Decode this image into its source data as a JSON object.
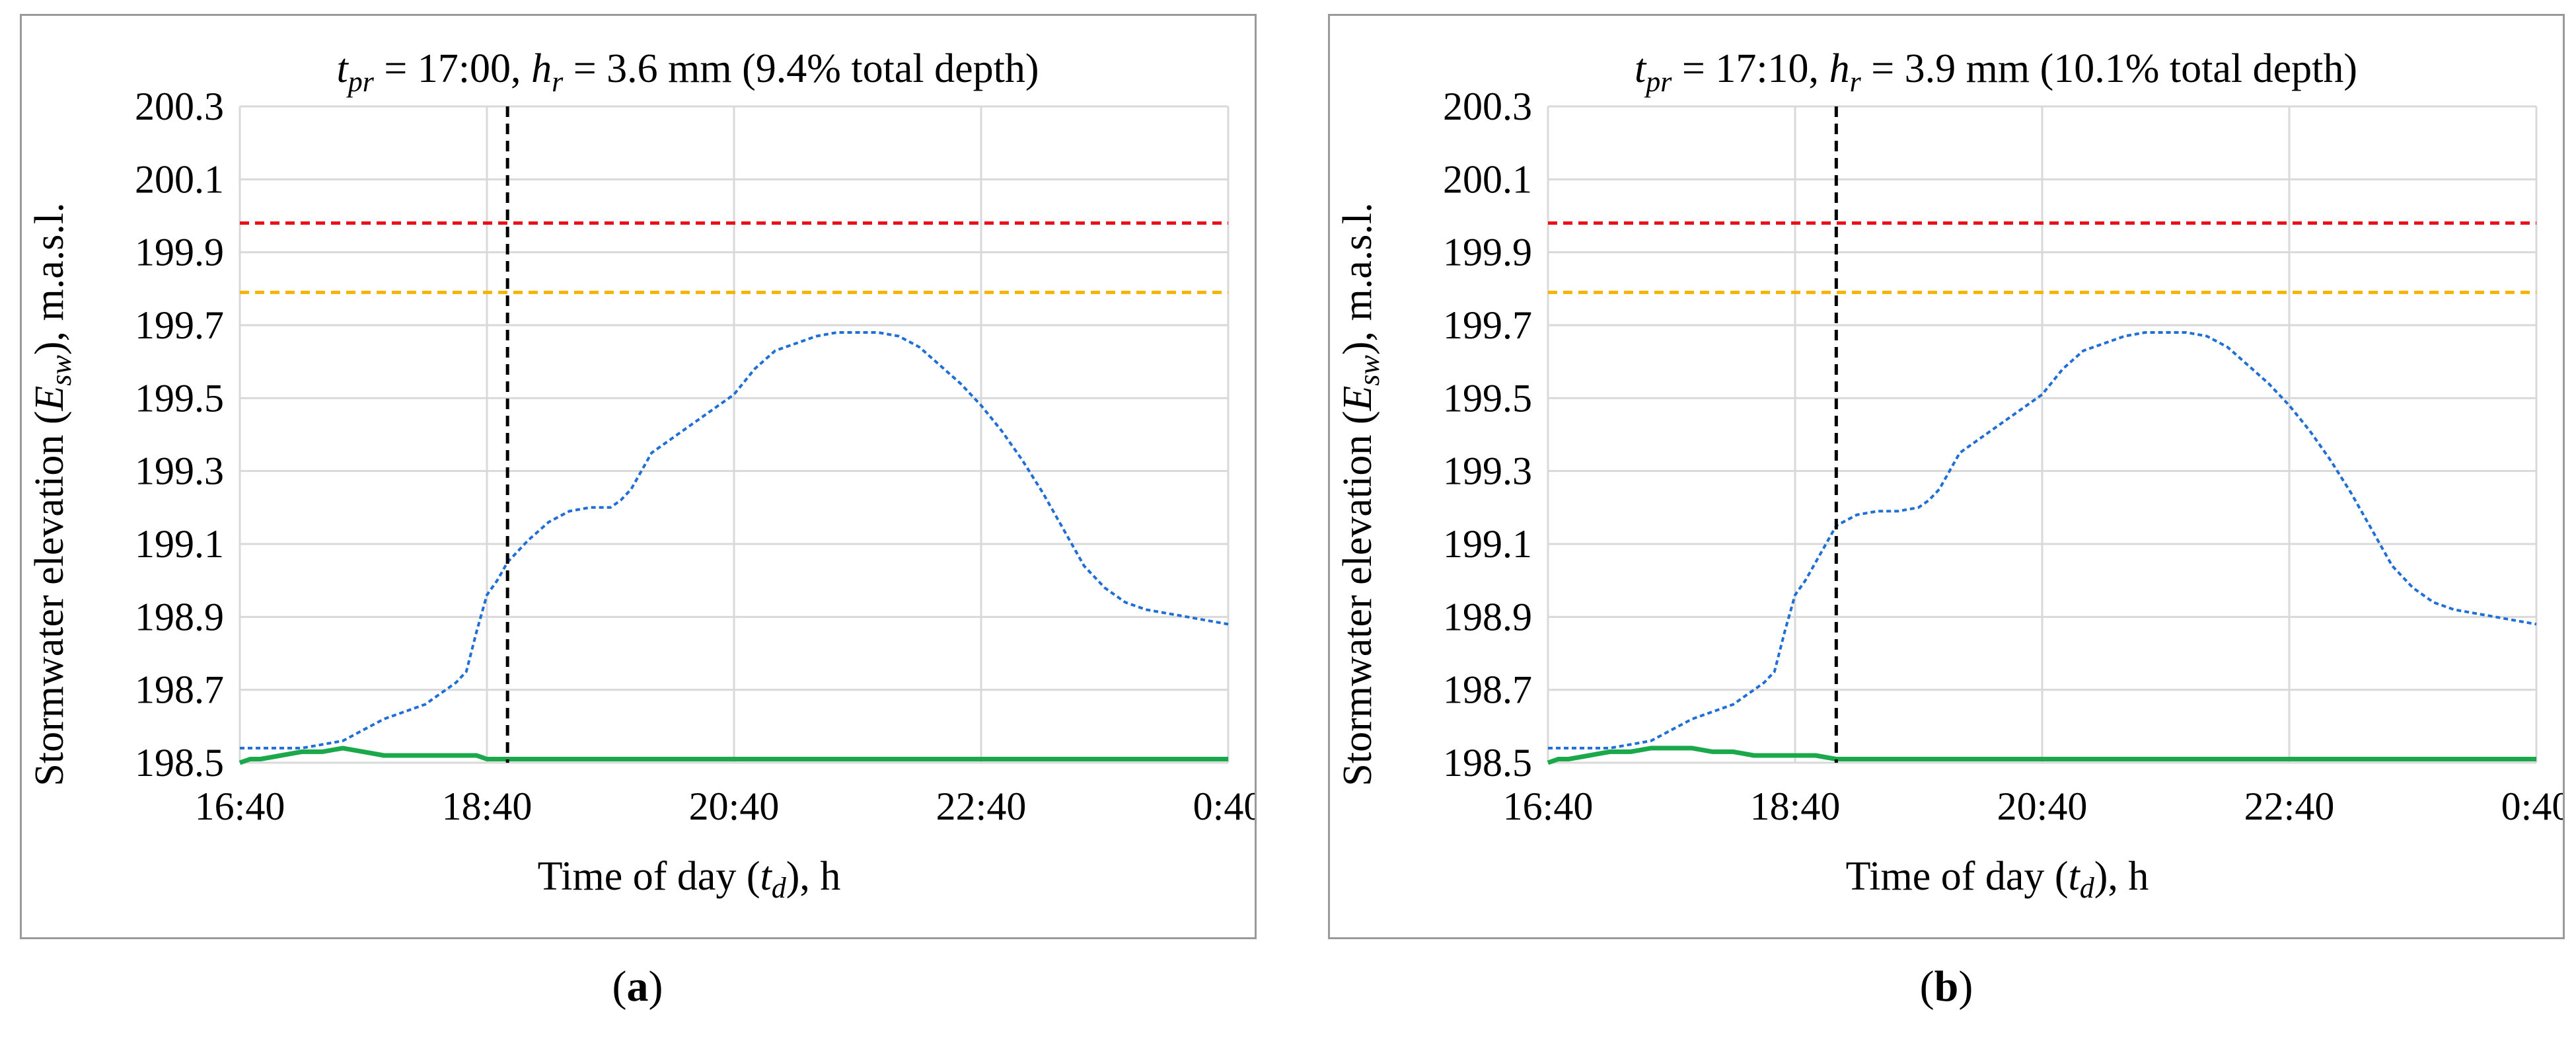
{
  "panels": [
    {
      "caption": {
        "open": "(",
        "letter": "a",
        "close": ")"
      },
      "title": {
        "t_sym": "t",
        "t_sub": "pr",
        "t_val": " = 17:00, ",
        "h_sym": "h",
        "h_sub": "r",
        "h_val": " = 3.6 mm (9.4% total depth)"
      },
      "ylabel": {
        "pre": "Stormwater elevation (",
        "sym": "E",
        "sub": "sw",
        "post": "), m.a.s.l."
      },
      "xlabel": {
        "pre": "Time of day (",
        "sym": "t",
        "sub": "d",
        "post": "), h"
      }
    },
    {
      "caption": {
        "open": "(",
        "letter": "b",
        "close": ")"
      },
      "title": {
        "t_sym": "t",
        "t_sub": "pr",
        "t_val": " = 17:10, ",
        "h_sym": "h",
        "h_sub": "r",
        "h_val": " = 3.9 mm (10.1% total depth)"
      },
      "ylabel": {
        "pre": "Stormwater elevation (",
        "sym": "E",
        "sub": "sw",
        "post": "), m.a.s.l."
      },
      "xlabel": {
        "pre": "Time of day (",
        "sym": "t",
        "sub": "d",
        "post": "), h"
      }
    }
  ],
  "chart_data": [
    {
      "type": "line",
      "title": "t_pr = 17:00, h_r = 3.6 mm (9.4% total depth)",
      "xlabel": "Time of day (t_d), h",
      "ylabel": "Stormwater elevation (E_sw), m.a.s.l.",
      "xlim": [
        0,
        480
      ],
      "x_unit": "minutes after 16:40",
      "ylim": [
        198.5,
        200.3
      ],
      "yticks": [
        "198.5",
        "198.7",
        "198.9",
        "199.1",
        "199.3",
        "199.5",
        "199.7",
        "199.9",
        "200.1",
        "200.3"
      ],
      "xticks": [
        {
          "x": 0,
          "label": "16:40"
        },
        {
          "x": 120,
          "label": "18:40"
        },
        {
          "x": 240,
          "label": "20:40"
        },
        {
          "x": 360,
          "label": "22:40"
        },
        {
          "x": 480,
          "label": "0:40"
        }
      ],
      "grid": true,
      "hlines": [
        {
          "name": "red-threshold",
          "y": 199.98,
          "color": "#e8101a"
        },
        {
          "name": "orange-threshold",
          "y": 199.79,
          "color": "#f4b400"
        }
      ],
      "vline": {
        "x": 130,
        "color": "#000000"
      },
      "series": [
        {
          "name": "stormwater-elevation",
          "color": "#1f6fd6",
          "style": "dotted",
          "x": [
            0,
            10,
            20,
            30,
            40,
            50,
            60,
            70,
            80,
            90,
            100,
            105,
            110,
            115,
            120,
            125,
            130,
            140,
            150,
            160,
            170,
            180,
            185,
            190,
            200,
            210,
            220,
            230,
            240,
            250,
            260,
            270,
            280,
            290,
            300,
            310,
            320,
            330,
            340,
            350,
            360,
            370,
            380,
            390,
            400,
            410,
            420,
            430,
            440,
            450,
            460,
            470,
            480
          ],
          "values": [
            198.54,
            198.54,
            198.54,
            198.54,
            198.55,
            198.56,
            198.59,
            198.62,
            198.64,
            198.66,
            198.7,
            198.72,
            198.75,
            198.86,
            198.96,
            199.0,
            199.05,
            199.11,
            199.16,
            199.19,
            199.2,
            199.2,
            199.22,
            199.25,
            199.35,
            199.39,
            199.43,
            199.47,
            199.51,
            199.58,
            199.63,
            199.65,
            199.67,
            199.68,
            199.68,
            199.68,
            199.67,
            199.64,
            199.59,
            199.54,
            199.48,
            199.41,
            199.33,
            199.24,
            199.14,
            199.04,
            198.98,
            198.94,
            198.92,
            198.91,
            198.9,
            198.89,
            198.88
          ]
        },
        {
          "name": "green-level",
          "color": "#1aa84b",
          "style": "solid",
          "x": [
            0,
            5,
            10,
            20,
            30,
            40,
            50,
            60,
            70,
            80,
            90,
            100,
            110,
            115,
            120,
            125,
            130,
            200,
            300,
            400,
            480
          ],
          "values": [
            198.5,
            198.51,
            198.51,
            198.52,
            198.53,
            198.53,
            198.54,
            198.53,
            198.52,
            198.52,
            198.52,
            198.52,
            198.52,
            198.52,
            198.51,
            198.51,
            198.51,
            198.51,
            198.51,
            198.51,
            198.51
          ]
        }
      ]
    },
    {
      "type": "line",
      "title": "t_pr = 17:10, h_r = 3.9 mm (10.1% total depth)",
      "xlabel": "Time of day (t_d), h",
      "ylabel": "Stormwater elevation (E_sw), m.a.s.l.",
      "xlim": [
        0,
        480
      ],
      "x_unit": "minutes after 16:40",
      "ylim": [
        198.5,
        200.3
      ],
      "yticks": [
        "198.5",
        "198.7",
        "198.9",
        "199.1",
        "199.3",
        "199.5",
        "199.7",
        "199.9",
        "200.1",
        "200.3"
      ],
      "xticks": [
        {
          "x": 0,
          "label": "16:40"
        },
        {
          "x": 120,
          "label": "18:40"
        },
        {
          "x": 240,
          "label": "20:40"
        },
        {
          "x": 360,
          "label": "22:40"
        },
        {
          "x": 480,
          "label": "0:40"
        }
      ],
      "grid": true,
      "hlines": [
        {
          "name": "red-threshold",
          "y": 199.98,
          "color": "#e8101a"
        },
        {
          "name": "orange-threshold",
          "y": 199.79,
          "color": "#f4b400"
        }
      ],
      "vline": {
        "x": 140,
        "color": "#000000"
      },
      "series": [
        {
          "name": "stormwater-elevation",
          "color": "#1f6fd6",
          "style": "dotted",
          "x": [
            0,
            10,
            20,
            30,
            40,
            50,
            60,
            70,
            80,
            90,
            100,
            105,
            110,
            115,
            120,
            125,
            130,
            140,
            150,
            160,
            170,
            180,
            185,
            190,
            200,
            210,
            220,
            230,
            240,
            250,
            260,
            270,
            280,
            290,
            300,
            310,
            320,
            330,
            340,
            350,
            360,
            370,
            380,
            390,
            400,
            410,
            420,
            430,
            440,
            450,
            460,
            470,
            480
          ],
          "values": [
            198.54,
            198.54,
            198.54,
            198.54,
            198.55,
            198.56,
            198.59,
            198.62,
            198.64,
            198.66,
            198.7,
            198.72,
            198.75,
            198.86,
            198.96,
            199.0,
            199.05,
            199.15,
            199.18,
            199.19,
            199.19,
            199.2,
            199.22,
            199.25,
            199.35,
            199.39,
            199.43,
            199.47,
            199.51,
            199.58,
            199.63,
            199.65,
            199.67,
            199.68,
            199.68,
            199.68,
            199.67,
            199.64,
            199.59,
            199.54,
            199.48,
            199.41,
            199.33,
            199.24,
            199.14,
            199.04,
            198.98,
            198.94,
            198.92,
            198.91,
            198.9,
            198.89,
            198.88
          ]
        },
        {
          "name": "green-level",
          "color": "#1aa84b",
          "style": "solid",
          "x": [
            0,
            5,
            10,
            20,
            30,
            40,
            50,
            60,
            70,
            80,
            90,
            100,
            110,
            120,
            130,
            140,
            200,
            300,
            400,
            480
          ],
          "values": [
            198.5,
            198.51,
            198.51,
            198.52,
            198.53,
            198.53,
            198.54,
            198.54,
            198.54,
            198.53,
            198.53,
            198.52,
            198.52,
            198.52,
            198.52,
            198.51,
            198.51,
            198.51,
            198.51,
            198.51
          ]
        }
      ]
    }
  ]
}
